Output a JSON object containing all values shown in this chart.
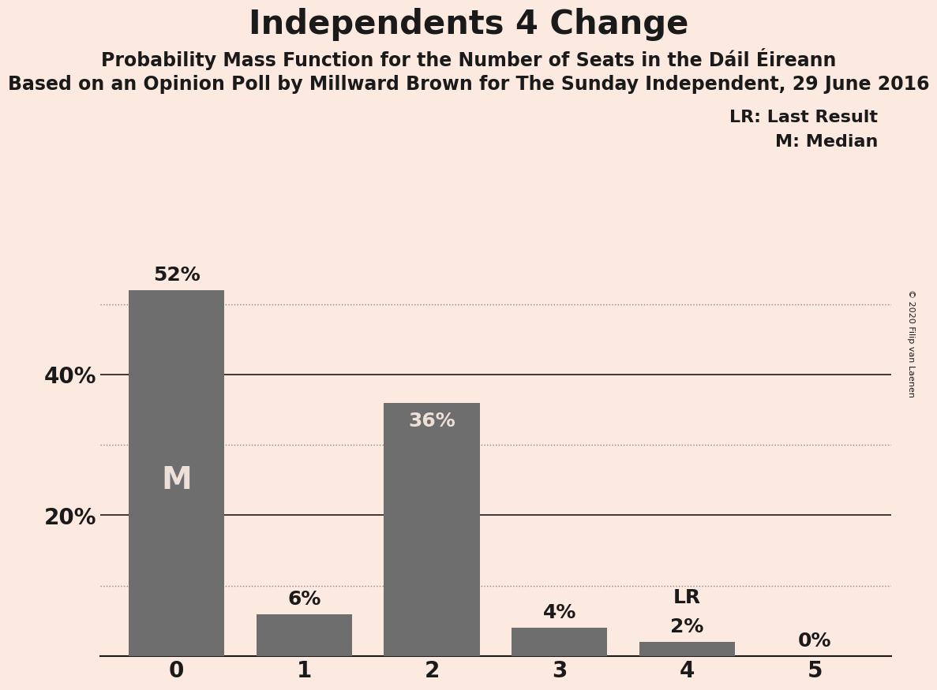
{
  "title": "Independents 4 Change",
  "subtitle1": "Probability Mass Function for the Number of Seats in the Dáil Éireann",
  "subtitle2": "Based on an Opinion Poll by Millward Brown for The Sunday Independent, 29 June 2016",
  "copyright": "© 2020 Filip van Laenen",
  "categories": [
    0,
    1,
    2,
    3,
    4,
    5
  ],
  "values": [
    0.52,
    0.06,
    0.36,
    0.04,
    0.02,
    0.0
  ],
  "bar_color": "#6e6e6e",
  "background_color": "#fce9e0",
  "text_color": "#1a1a1a",
  "bar_label_color_light": "#ede0d8",
  "ylim": [
    0,
    0.6
  ],
  "yticks": [
    0.1,
    0.2,
    0.3,
    0.4,
    0.5
  ],
  "ytick_label_values": [
    "",
    "20%",
    "",
    "40%",
    ""
  ],
  "solid_yticks": [
    0.2,
    0.4
  ],
  "dotted_yticks": [
    0.1,
    0.3,
    0.5
  ],
  "median_bar": 0,
  "last_result_bar": 4,
  "legend_lr": "LR: Last Result",
  "legend_m": "M: Median",
  "title_fontsize": 30,
  "subtitle1_fontsize": 17,
  "subtitle2_fontsize": 17,
  "bar_label_fontsize": 18,
  "axis_label_fontsize": 20,
  "legend_fontsize": 16,
  "bar_width": 0.75
}
